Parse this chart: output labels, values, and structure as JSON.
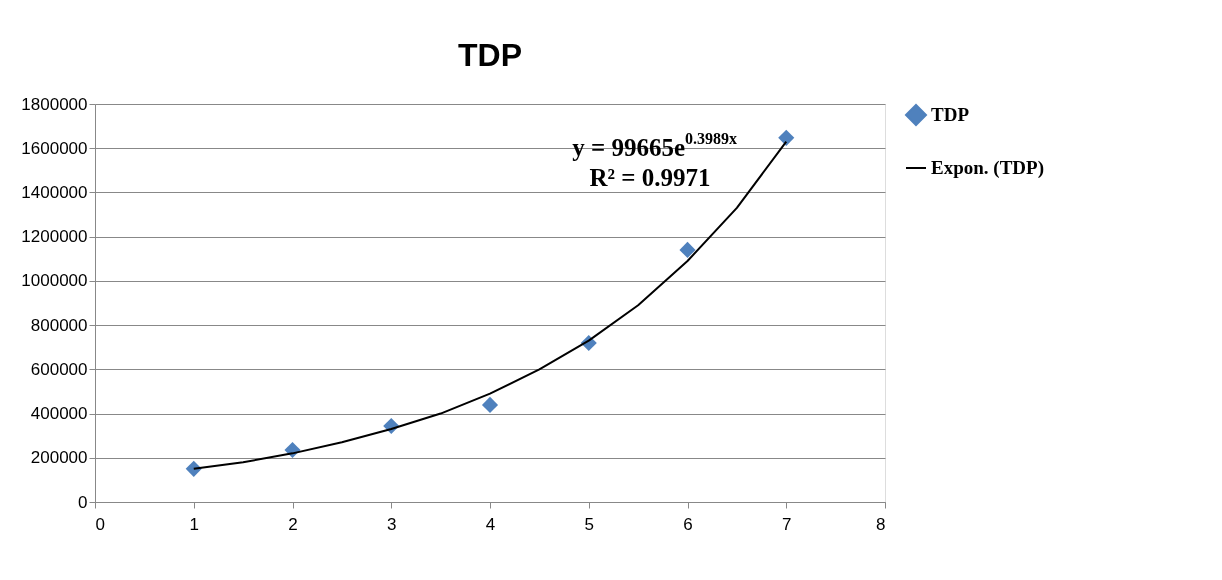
{
  "chart_data": {
    "type": "scatter",
    "title": "TDP",
    "x": [
      1,
      2,
      3,
      4,
      5,
      6,
      7
    ],
    "series": [
      {
        "name": "TDP",
        "color": "#4f81bd",
        "marker": "diamond",
        "values": [
          150000,
          235000,
          344000,
          439000,
          719000,
          1140000,
          1647000
        ]
      },
      {
        "name": "Expon. (TDP)",
        "type": "line",
        "color": "#000000",
        "marker": "none",
        "line_style": "solid",
        "x": [
          1,
          1.5,
          2,
          2.5,
          3,
          3.5,
          4,
          4.5,
          5,
          5.5,
          6,
          6.5,
          7
        ],
        "values": [
          150000,
          180000,
          220000,
          270000,
          330000,
          400000,
          490000,
          600000,
          730000,
          890000,
          1090000,
          1330000,
          1630000
        ]
      }
    ],
    "annotations": [
      "y = 99665e$^{0.3989x}$",
      "R² = 0.9971"
    ],
    "xlim": [
      0,
      8
    ],
    "xticks": [
      0,
      1,
      2,
      3,
      4,
      5,
      6,
      7,
      8
    ],
    "ylim": [
      0,
      1800000
    ],
    "yticks": [
      0,
      200000,
      400000,
      600000,
      800000,
      1000000,
      1200000,
      1400000,
      1600000,
      1800000
    ],
    "grid": "y",
    "legend": "right"
  }
}
